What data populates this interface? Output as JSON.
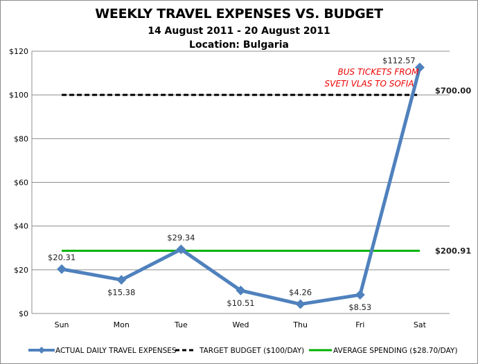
{
  "chart_data": {
    "type": "line",
    "title": "WEEKLY TRAVEL EXPENSES VS. BUDGET",
    "subtitle": "14 August 2011 - 20 August 2011",
    "subtitle2": "Location: Bulgaria",
    "categories": [
      "Sun",
      "Mon",
      "Tue",
      "Wed",
      "Thu",
      "Fri",
      "Sat"
    ],
    "ylim": [
      0,
      120
    ],
    "yticks": [
      0,
      20,
      40,
      60,
      80,
      100,
      120
    ],
    "ytick_labels": [
      "$0",
      "$20",
      "$40",
      "$60",
      "$80",
      "$100",
      "$120"
    ],
    "grid": true,
    "legend_position": "bottom",
    "series": [
      {
        "name": "ACTUAL DAILY TRAVEL EXPENSES",
        "values": [
          20.31,
          15.38,
          29.34,
          10.51,
          4.26,
          8.53,
          112.57
        ],
        "labels": [
          "$20.31",
          "$15.38",
          "$29.34",
          "$10.51",
          "$4.26",
          "$8.53",
          "$112.57"
        ],
        "color": "#4f81bd",
        "style": "solid-diamond"
      },
      {
        "name": "TARGET BUDGET ($100/DAY)",
        "values": [
          100,
          100,
          100,
          100,
          100,
          100,
          100
        ],
        "color": "#000000",
        "style": "dashed",
        "end_label": "$700.00"
      },
      {
        "name": "AVERAGE SPENDING ($28.70/DAY)",
        "values": [
          28.7,
          28.7,
          28.7,
          28.7,
          28.7,
          28.7,
          28.7
        ],
        "color": "#00b000",
        "style": "solid",
        "end_label": "$200.91"
      }
    ],
    "annotation": {
      "line1": "BUS TICKETS FROM",
      "line2": "SVETI VLAS TO SOFIA",
      "color": "#ff0000"
    }
  }
}
